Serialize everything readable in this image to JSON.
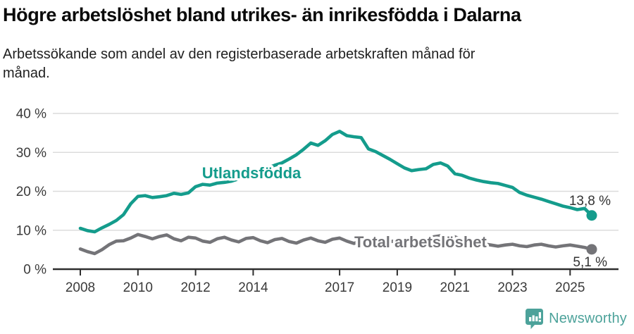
{
  "header": {
    "title": "Högre arbetslöshet bland utrikes- än inrikesfödda i Dalarna",
    "subtitle_lines": [
      "Arbetssökande som andel av den registerbaserade arbetskraften månad för",
      "månad."
    ]
  },
  "chart_data": {
    "type": "line",
    "title": "Högre arbetslöshet bland utrikes- än inrikesfödda i Dalarna",
    "subtitle": "Arbetssökande som andel av den registerbaserade arbetskraften månad för månad.",
    "xlabel": "",
    "ylabel": "",
    "ylim": [
      0,
      40
    ],
    "xlim": [
      2007.0,
      2026.7
    ],
    "grid": "horizontal",
    "legend_position": "inline-labels",
    "x_tick_labels": [
      "2008",
      "2010",
      "2012",
      "2014",
      "2017",
      "2019",
      "2021",
      "2023",
      "2025"
    ],
    "x_tick_years": [
      2008,
      2010,
      2012,
      2014,
      2017,
      2019,
      2021,
      2023,
      2025
    ],
    "y_tick_labels": [
      "0 %",
      "10 %",
      "20 %",
      "30 %",
      "40 %"
    ],
    "y_tick_values": [
      0,
      10,
      20,
      30,
      40
    ],
    "series": [
      {
        "name": "Utlandsfödda",
        "color": "#149c8c",
        "end_label": "13,8 %",
        "end_value": 13.8,
        "x": [
          2008.0,
          2008.25,
          2008.5,
          2008.75,
          2009.0,
          2009.25,
          2009.5,
          2009.75,
          2010.0,
          2010.25,
          2010.5,
          2010.75,
          2011.0,
          2011.25,
          2011.5,
          2011.75,
          2012.0,
          2012.25,
          2012.5,
          2012.75,
          2013.0,
          2013.25,
          2013.5,
          2013.75,
          2014.0,
          2014.25,
          2014.5,
          2014.75,
          2015.0,
          2015.25,
          2015.5,
          2015.75,
          2016.0,
          2016.25,
          2016.5,
          2016.75,
          2017.0,
          2017.25,
          2017.5,
          2017.75,
          2018.0,
          2018.25,
          2018.5,
          2018.75,
          2019.0,
          2019.25,
          2019.5,
          2019.75,
          2020.0,
          2020.25,
          2020.5,
          2020.75,
          2021.0,
          2021.25,
          2021.5,
          2021.75,
          2022.0,
          2022.25,
          2022.5,
          2022.75,
          2023.0,
          2023.25,
          2023.5,
          2023.75,
          2024.0,
          2024.25,
          2024.5,
          2024.75,
          2025.0,
          2025.25,
          2025.5,
          2025.75
        ],
        "values": [
          10.5,
          9.9,
          9.6,
          10.6,
          11.5,
          12.5,
          14.0,
          16.8,
          18.7,
          18.9,
          18.4,
          18.6,
          18.9,
          19.5,
          19.2,
          19.6,
          21.2,
          21.8,
          21.6,
          22.1,
          22.3,
          22.6,
          23.2,
          23.9,
          24.5,
          25.2,
          26.0,
          26.7,
          27.3,
          28.3,
          29.4,
          30.8,
          32.4,
          31.8,
          33.0,
          34.6,
          35.4,
          34.3,
          34.0,
          33.8,
          30.9,
          30.2,
          29.2,
          28.2,
          27.1,
          26.0,
          25.3,
          25.6,
          25.8,
          26.9,
          27.3,
          26.5,
          24.5,
          24.1,
          23.4,
          22.9,
          22.5,
          22.2,
          22.0,
          21.5,
          21.0,
          19.7,
          19.0,
          18.5,
          18.0,
          17.4,
          16.8,
          16.2,
          15.8,
          15.3,
          15.6,
          13.8
        ]
      },
      {
        "name": "Total arbetslöshet",
        "color": "#747478",
        "end_label": "5,1 %",
        "end_value": 5.1,
        "x": [
          2008.0,
          2008.25,
          2008.5,
          2008.75,
          2009.0,
          2009.25,
          2009.5,
          2009.75,
          2010.0,
          2010.25,
          2010.5,
          2010.75,
          2011.0,
          2011.25,
          2011.5,
          2011.75,
          2012.0,
          2012.25,
          2012.5,
          2012.75,
          2013.0,
          2013.25,
          2013.5,
          2013.75,
          2014.0,
          2014.25,
          2014.5,
          2014.75,
          2015.0,
          2015.25,
          2015.5,
          2015.75,
          2016.0,
          2016.25,
          2016.5,
          2016.75,
          2017.0,
          2017.25,
          2017.5,
          2017.75,
          2018.0,
          2018.25,
          2018.5,
          2018.75,
          2019.0,
          2019.25,
          2019.5,
          2019.75,
          2020.0,
          2020.25,
          2020.5,
          2020.75,
          2021.0,
          2021.25,
          2021.5,
          2021.75,
          2022.0,
          2022.25,
          2022.5,
          2022.75,
          2023.0,
          2023.25,
          2023.5,
          2023.75,
          2024.0,
          2024.25,
          2024.5,
          2024.75,
          2025.0,
          2025.25,
          2025.5,
          2025.75
        ],
        "values": [
          5.2,
          4.5,
          4.0,
          5.0,
          6.3,
          7.2,
          7.3,
          8.0,
          8.9,
          8.4,
          7.8,
          8.4,
          8.8,
          7.8,
          7.3,
          8.2,
          8.0,
          7.2,
          6.9,
          7.8,
          8.2,
          7.5,
          7.0,
          7.9,
          8.1,
          7.3,
          6.8,
          7.6,
          7.9,
          7.1,
          6.7,
          7.5,
          8.0,
          7.3,
          6.9,
          7.7,
          8.0,
          7.2,
          6.6,
          7.4,
          7.6,
          6.9,
          6.5,
          7.1,
          7.3,
          6.8,
          6.6,
          7.0,
          7.4,
          8.3,
          8.6,
          8.2,
          8.3,
          7.6,
          7.0,
          6.8,
          6.5,
          6.2,
          5.9,
          6.2,
          6.4,
          6.0,
          5.8,
          6.2,
          6.4,
          6.0,
          5.7,
          6.0,
          6.2,
          5.9,
          5.6,
          5.1
        ]
      }
    ],
    "colors": {
      "grid": "#dcdcdc",
      "axis": "#2e2e2e",
      "tick_text": "#3a3a3a",
      "value_label_text": "#333333"
    }
  },
  "footer": {
    "brand": "Newsworthy",
    "brand_color": "#4ca29a",
    "logo_icon": "speech-bubble-bar-chart-icon"
  }
}
